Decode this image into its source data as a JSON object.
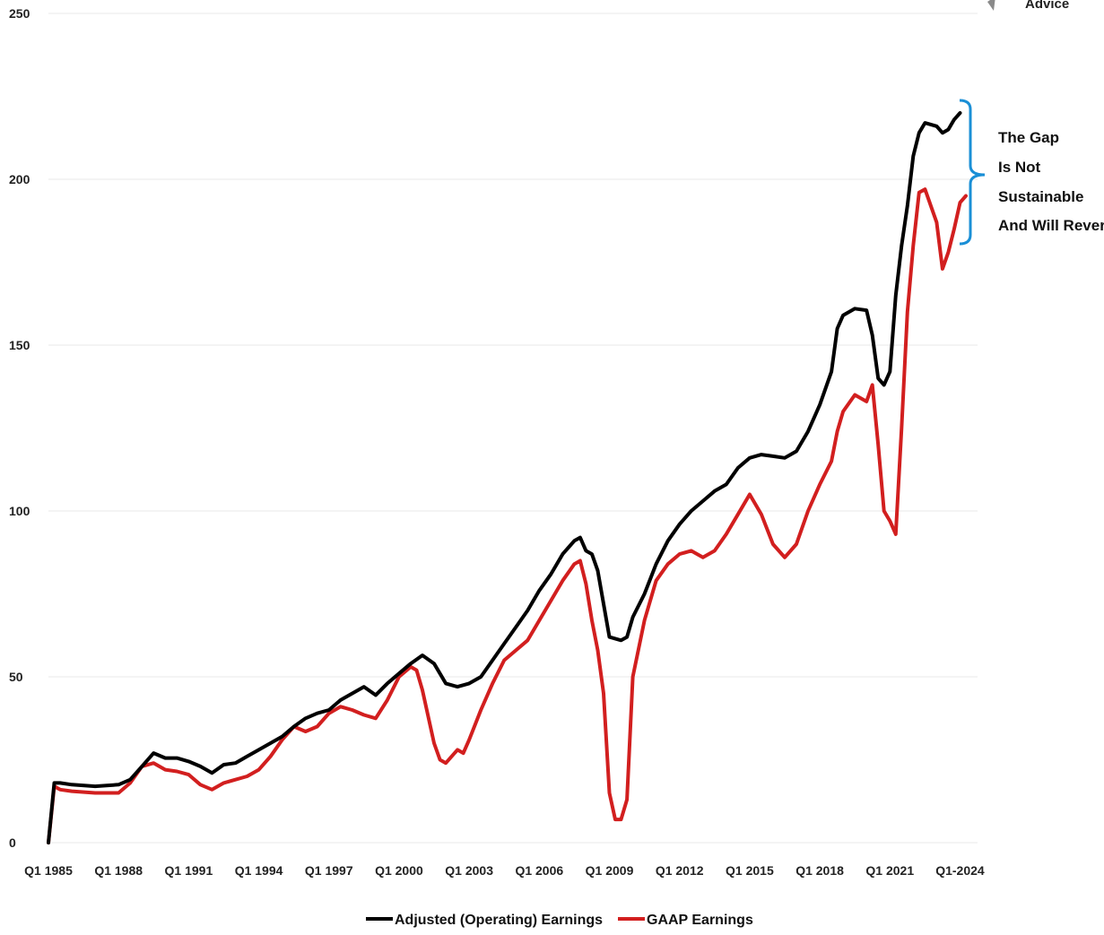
{
  "logo": {
    "text": "Advice"
  },
  "chart_data": {
    "type": "line",
    "title": "",
    "xlabel": "",
    "ylabel": "",
    "ylim": [
      0,
      250
    ],
    "yticks": [
      0,
      50,
      100,
      150,
      200,
      250
    ],
    "xlim": [
      1985.0,
      2024.75
    ],
    "xtick_labels": [
      "Q1 1985",
      "Q1 1988",
      "Q1 1991",
      "Q1 1994",
      "Q1 1997",
      "Q1 2000",
      "Q1 2003",
      "Q1 2006",
      "Q1 2009",
      "Q1 2012",
      "Q1 2015",
      "Q1 2018",
      "Q1 2021",
      "Q1-2024"
    ],
    "xtick_values": [
      1985,
      1988,
      1991,
      1994,
      1997,
      2000,
      2003,
      2006,
      2009,
      2012,
      2015,
      2018,
      2021,
      2024
    ],
    "grid": "horizontal",
    "legend": "bottom-center",
    "series": [
      {
        "name": "Adjusted (Operating) Earnings",
        "color": "#000000",
        "points": [
          [
            1985.0,
            0
          ],
          [
            1985.25,
            18
          ],
          [
            1985.5,
            18
          ],
          [
            1986.0,
            17.5
          ],
          [
            1987.0,
            17
          ],
          [
            1988.0,
            17.5
          ],
          [
            1988.5,
            19
          ],
          [
            1989.0,
            23
          ],
          [
            1989.5,
            27
          ],
          [
            1990.0,
            25.5
          ],
          [
            1990.5,
            25.5
          ],
          [
            1991.0,
            24.5
          ],
          [
            1991.5,
            23
          ],
          [
            1992.0,
            21
          ],
          [
            1992.5,
            23.5
          ],
          [
            1993.0,
            24
          ],
          [
            1993.5,
            26
          ],
          [
            1994.0,
            28
          ],
          [
            1994.5,
            30
          ],
          [
            1995.0,
            32
          ],
          [
            1995.5,
            35
          ],
          [
            1996.0,
            37.5
          ],
          [
            1996.5,
            39
          ],
          [
            1997.0,
            40
          ],
          [
            1997.5,
            43
          ],
          [
            1998.0,
            45
          ],
          [
            1998.5,
            47
          ],
          [
            1999.0,
            44.5
          ],
          [
            1999.5,
            48
          ],
          [
            2000.0,
            51
          ],
          [
            2000.5,
            54
          ],
          [
            2001.0,
            56.5
          ],
          [
            2001.5,
            54
          ],
          [
            2002.0,
            48
          ],
          [
            2002.5,
            47
          ],
          [
            2003.0,
            48
          ],
          [
            2003.5,
            50
          ],
          [
            2004.0,
            55
          ],
          [
            2004.5,
            60
          ],
          [
            2005.0,
            65
          ],
          [
            2005.5,
            70
          ],
          [
            2006.0,
            76
          ],
          [
            2006.5,
            81
          ],
          [
            2007.0,
            87
          ],
          [
            2007.5,
            91
          ],
          [
            2007.75,
            92
          ],
          [
            2008.0,
            88
          ],
          [
            2008.25,
            87
          ],
          [
            2008.5,
            82
          ],
          [
            2008.75,
            72
          ],
          [
            2009.0,
            62
          ],
          [
            2009.5,
            61
          ],
          [
            2009.75,
            62
          ],
          [
            2010.0,
            68
          ],
          [
            2010.5,
            75
          ],
          [
            2011.0,
            84
          ],
          [
            2011.5,
            91
          ],
          [
            2012.0,
            96
          ],
          [
            2012.5,
            100
          ],
          [
            2013.0,
            103
          ],
          [
            2013.5,
            106
          ],
          [
            2014.0,
            108
          ],
          [
            2014.5,
            113
          ],
          [
            2015.0,
            116
          ],
          [
            2015.5,
            117
          ],
          [
            2016.0,
            116.5
          ],
          [
            2016.5,
            116
          ],
          [
            2017.0,
            118
          ],
          [
            2017.5,
            124
          ],
          [
            2018.0,
            132
          ],
          [
            2018.5,
            142
          ],
          [
            2018.75,
            155
          ],
          [
            2019.0,
            159
          ],
          [
            2019.5,
            161
          ],
          [
            2020.0,
            160.5
          ],
          [
            2020.25,
            153
          ],
          [
            2020.5,
            140
          ],
          [
            2020.75,
            138
          ],
          [
            2021.0,
            142
          ],
          [
            2021.25,
            165
          ],
          [
            2021.5,
            180
          ],
          [
            2021.75,
            192
          ],
          [
            2022.0,
            207
          ],
          [
            2022.25,
            214
          ],
          [
            2022.5,
            217
          ],
          [
            2023.0,
            216
          ],
          [
            2023.25,
            214
          ],
          [
            2023.5,
            215
          ],
          [
            2023.75,
            218
          ],
          [
            2024.0,
            220
          ]
        ]
      },
      {
        "name": "GAAP Earnings",
        "color": "#d21f1f",
        "points": [
          [
            1985.0,
            0
          ],
          [
            1985.25,
            17
          ],
          [
            1985.5,
            16
          ],
          [
            1986.0,
            15.5
          ],
          [
            1987.0,
            15
          ],
          [
            1988.0,
            15
          ],
          [
            1988.5,
            18
          ],
          [
            1989.0,
            23
          ],
          [
            1989.5,
            24
          ],
          [
            1990.0,
            22
          ],
          [
            1990.5,
            21.5
          ],
          [
            1991.0,
            20.5
          ],
          [
            1991.5,
            17.5
          ],
          [
            1992.0,
            16
          ],
          [
            1992.5,
            18
          ],
          [
            1993.0,
            19
          ],
          [
            1993.5,
            20
          ],
          [
            1994.0,
            22
          ],
          [
            1994.5,
            26
          ],
          [
            1995.0,
            31
          ],
          [
            1995.5,
            35
          ],
          [
            1996.0,
            33.5
          ],
          [
            1996.5,
            35
          ],
          [
            1997.0,
            39
          ],
          [
            1997.5,
            41
          ],
          [
            1998.0,
            40
          ],
          [
            1998.5,
            38.5
          ],
          [
            1999.0,
            37.5
          ],
          [
            1999.5,
            43
          ],
          [
            2000.0,
            50
          ],
          [
            2000.5,
            53
          ],
          [
            2000.75,
            52
          ],
          [
            2001.0,
            46
          ],
          [
            2001.5,
            30
          ],
          [
            2001.75,
            25
          ],
          [
            2002.0,
            24
          ],
          [
            2002.5,
            28
          ],
          [
            2002.75,
            27
          ],
          [
            2003.0,
            31
          ],
          [
            2003.5,
            40
          ],
          [
            2004.0,
            48
          ],
          [
            2004.5,
            55
          ],
          [
            2005.0,
            58
          ],
          [
            2005.5,
            61
          ],
          [
            2006.0,
            67
          ],
          [
            2006.5,
            73
          ],
          [
            2007.0,
            79
          ],
          [
            2007.5,
            84
          ],
          [
            2007.75,
            85
          ],
          [
            2008.0,
            78
          ],
          [
            2008.25,
            67
          ],
          [
            2008.5,
            58
          ],
          [
            2008.75,
            45
          ],
          [
            2009.0,
            15
          ],
          [
            2009.25,
            7
          ],
          [
            2009.5,
            7
          ],
          [
            2009.75,
            13
          ],
          [
            2010.0,
            50
          ],
          [
            2010.5,
            67
          ],
          [
            2011.0,
            79
          ],
          [
            2011.5,
            84
          ],
          [
            2012.0,
            87
          ],
          [
            2012.5,
            88
          ],
          [
            2013.0,
            86
          ],
          [
            2013.5,
            88
          ],
          [
            2014.0,
            93
          ],
          [
            2014.5,
            99
          ],
          [
            2015.0,
            105
          ],
          [
            2015.5,
            99
          ],
          [
            2016.0,
            90
          ],
          [
            2016.5,
            86
          ],
          [
            2017.0,
            90
          ],
          [
            2017.5,
            100
          ],
          [
            2018.0,
            108
          ],
          [
            2018.5,
            115
          ],
          [
            2018.75,
            124
          ],
          [
            2019.0,
            130
          ],
          [
            2019.5,
            135
          ],
          [
            2020.0,
            133
          ],
          [
            2020.25,
            138
          ],
          [
            2020.5,
            120
          ],
          [
            2020.75,
            100
          ],
          [
            2021.0,
            97
          ],
          [
            2021.25,
            93
          ],
          [
            2021.5,
            125
          ],
          [
            2021.75,
            160
          ],
          [
            2022.0,
            180
          ],
          [
            2022.25,
            196
          ],
          [
            2022.5,
            197
          ],
          [
            2023.0,
            187
          ],
          [
            2023.25,
            173
          ],
          [
            2023.5,
            178
          ],
          [
            2023.75,
            185
          ],
          [
            2024.0,
            193
          ],
          [
            2024.25,
            195
          ]
        ]
      }
    ],
    "annotations": [
      {
        "lines": [
          "The Gap",
          "Is Not",
          "Sustainable",
          "And Will Revert"
        ],
        "bracket_color": "#1a8fd6"
      }
    ]
  }
}
